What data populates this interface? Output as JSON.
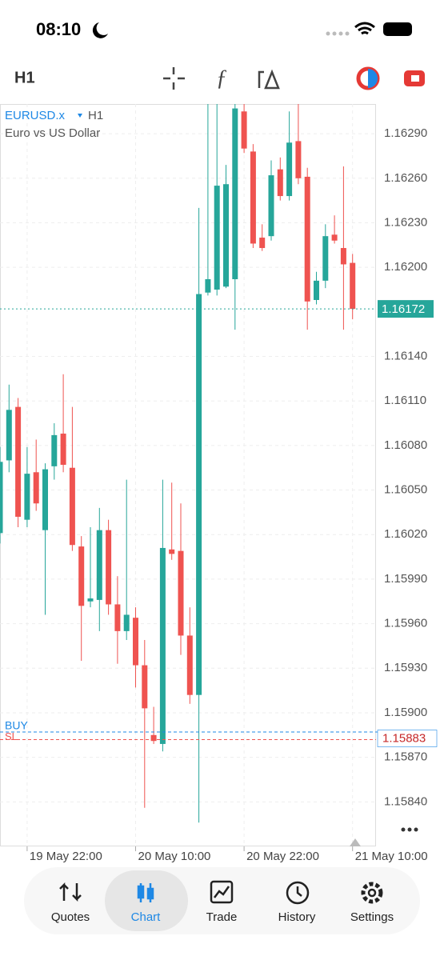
{
  "status_bar": {
    "time": "08:10"
  },
  "toolbar": {
    "timeframe": "H1"
  },
  "chart_data": {
    "type": "candlestick",
    "symbol": "EURUSD.x",
    "timeframe": "H1",
    "description": "Euro vs US Dollar",
    "up_color": "#26a69a",
    "down_color": "#ef5350",
    "categories": [
      null,
      null,
      null,
      "19 May 22:00",
      null,
      null,
      null,
      null,
      null,
      null,
      null,
      null,
      null,
      null,
      null,
      "20 May 10:00",
      null,
      null,
      null,
      null,
      null,
      null,
      null,
      null,
      null,
      null,
      null,
      "20 May 22:00",
      null,
      null,
      null,
      null,
      null,
      null,
      null,
      null,
      null,
      null,
      null,
      "21 May 10:00"
    ],
    "open": [
      1.16021,
      1.1607,
      1.16106,
      1.1603,
      1.16062,
      1.16023,
      1.16066,
      1.16088,
      1.16065,
      1.16012,
      1.15975,
      1.15976,
      1.16023,
      1.15973,
      1.15955,
      1.15964,
      1.15932,
      1.15885,
      1.15879,
      1.1601,
      1.16009,
      1.15952,
      1.15912,
      1.16183,
      1.16185,
      1.16187,
      1.16192,
      1.16305,
      1.16278,
      1.1622,
      1.16221,
      1.16266,
      1.16248,
      1.16285,
      1.16261,
      1.16178,
      1.16191,
      1.16222,
      1.16213,
      1.16203
    ],
    "high": [
      1.16079,
      1.16121,
      1.16112,
      1.16079,
      1.16084,
      1.16068,
      1.16095,
      1.16128,
      1.16106,
      1.16019,
      1.16025,
      1.16038,
      1.1603,
      1.15992,
      1.16057,
      1.15971,
      1.15949,
      1.15904,
      1.16057,
      1.16055,
      1.16041,
      1.15971,
      1.1624,
      1.1631,
      1.1631,
      1.16269,
      1.1631,
      1.1631,
      1.16283,
      1.16229,
      1.16272,
      1.16274,
      1.16305,
      1.1631,
      1.16267,
      1.16197,
      1.16229,
      1.16235,
      1.16268,
      1.16209
    ],
    "low": [
      1.16014,
      1.16062,
      1.16025,
      1.16025,
      1.16036,
      1.15966,
      1.16057,
      1.16062,
      1.16009,
      1.15935,
      1.15971,
      1.15955,
      1.15966,
      1.15933,
      1.15949,
      1.15917,
      1.15836,
      1.15879,
      1.15874,
      1.16003,
      1.15939,
      1.15906,
      1.15826,
      1.16181,
      1.16181,
      1.16186,
      1.16158,
      1.16277,
      1.16213,
      1.16211,
      1.16218,
      1.16245,
      1.16245,
      1.16256,
      1.16158,
      1.16175,
      1.16186,
      1.16216,
      1.16158,
      1.16165
    ],
    "close": [
      1.16069,
      1.16104,
      1.16032,
      1.16061,
      1.16041,
      1.16064,
      1.16087,
      1.16067,
      1.16013,
      1.15972,
      1.15977,
      1.16023,
      1.15973,
      1.15955,
      1.15966,
      1.15932,
      1.15903,
      1.15881,
      1.16011,
      1.16007,
      1.15952,
      1.15912,
      1.16182,
      1.16192,
      1.16255,
      1.16256,
      1.16307,
      1.1628,
      1.16216,
      1.16213,
      1.16262,
      1.16248,
      1.16284,
      1.1626,
      1.16177,
      1.16191,
      1.16221,
      1.16218,
      1.16202,
      1.16172
    ],
    "ylim": [
      1.1581,
      1.1631
    ],
    "yticks": [
      {
        "value": 1.1584,
        "label": "1.15840"
      },
      {
        "value": 1.1587,
        "label": "1.15870"
      },
      {
        "value": 1.159,
        "label": "1.15900"
      },
      {
        "value": 1.1593,
        "label": "1.15930"
      },
      {
        "value": 1.1596,
        "label": "1.15960"
      },
      {
        "value": 1.1599,
        "label": "1.15990"
      },
      {
        "value": 1.1602,
        "label": "1.16020"
      },
      {
        "value": 1.1605,
        "label": "1.16050"
      },
      {
        "value": 1.1608,
        "label": "1.16080"
      },
      {
        "value": 1.1611,
        "label": "1.16110"
      },
      {
        "value": 1.1614,
        "label": "1.16140"
      },
      {
        "value": 1.162,
        "label": "1.16200"
      },
      {
        "value": 1.1623,
        "label": "1.16230"
      },
      {
        "value": 1.1626,
        "label": "1.16260"
      },
      {
        "value": 1.1629,
        "label": "1.16290"
      }
    ],
    "grid": true,
    "current_price": {
      "value": 1.16172,
      "label": "1.16172"
    },
    "buy_line": {
      "name": "BUY",
      "value": 1.15886
    },
    "sl_line": {
      "name": "SL",
      "value": 1.15883,
      "label": "1.15883"
    }
  },
  "nav": {
    "items": [
      "Quotes",
      "Chart",
      "Trade",
      "History",
      "Settings"
    ],
    "active": 1
  }
}
